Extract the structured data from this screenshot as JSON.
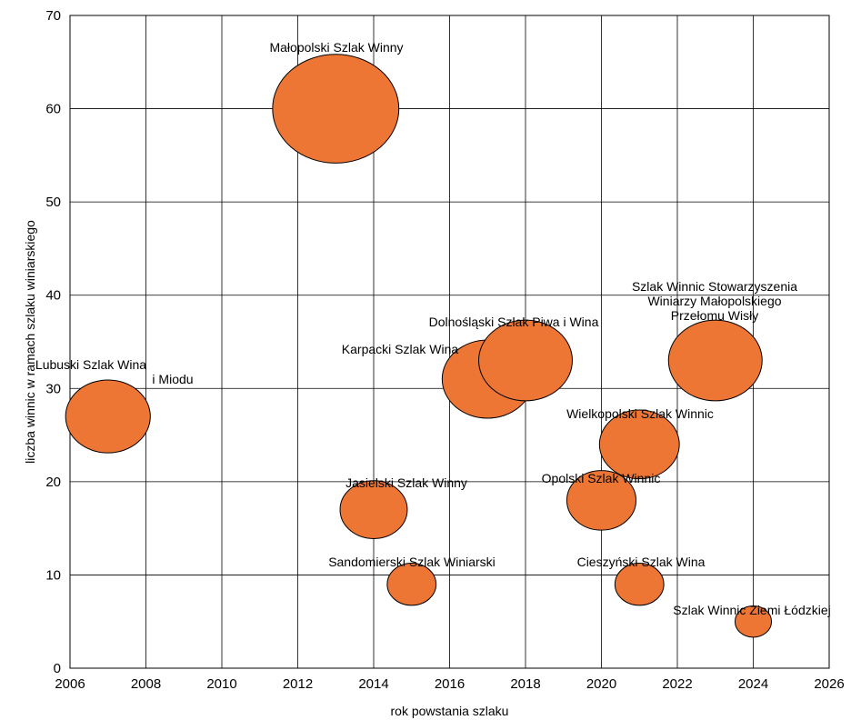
{
  "chart_data": {
    "type": "bubble",
    "xlabel": "rok powstania szlaku",
    "ylabel": "liczba winnic w ramach szlaku winiarskiego",
    "xlim": [
      2006,
      2026
    ],
    "ylim": [
      0,
      70
    ],
    "xticks": [
      "2006",
      "2008",
      "2010",
      "2012",
      "2014",
      "2016",
      "2018",
      "2020",
      "2022",
      "2024",
      "2026"
    ],
    "yticks": [
      "0",
      "10",
      "20",
      "30",
      "40",
      "50",
      "60",
      "70"
    ],
    "grid": true,
    "bubble_color": "#ED7634",
    "points": [
      {
        "x": 2007,
        "y": 27,
        "label_lines": [
          "Lubuski Szlak Wina",
          "i Miodu"
        ]
      },
      {
        "x": 2013,
        "y": 60,
        "label_lines": [
          "Małopolski Szlak Winny"
        ]
      },
      {
        "x": 2014,
        "y": 17,
        "label_lines": [
          "Jasielski Szlak Winny"
        ]
      },
      {
        "x": 2015,
        "y": 9,
        "label_lines": [
          "Sandomierski Szlak Winiarski"
        ]
      },
      {
        "x": 2017,
        "y": 31,
        "label_lines": [
          "Karpacki Szlak Wina"
        ]
      },
      {
        "x": 2018,
        "y": 33,
        "label_lines": [
          "Dolnośląski Szlak Piwa i Wina"
        ]
      },
      {
        "x": 2020,
        "y": 18,
        "label_lines": [
          "Opolski Szlak Winnic"
        ]
      },
      {
        "x": 2021,
        "y": 24,
        "label_lines": [
          "Wielkopolski Szlak Winnic"
        ]
      },
      {
        "x": 2021,
        "y": 9,
        "label_lines": [
          "Cieszyński Szlak Wina"
        ]
      },
      {
        "x": 2023,
        "y": 33,
        "label_lines": [
          "Szlak Winnic Stowarzyszenia",
          "Winiarzy Małopolskiego",
          "Przełomu Wisły"
        ]
      },
      {
        "x": 2024,
        "y": 5,
        "label_lines": [
          "Szlak Winnic Ziemi Łódzkiej"
        ]
      }
    ]
  }
}
